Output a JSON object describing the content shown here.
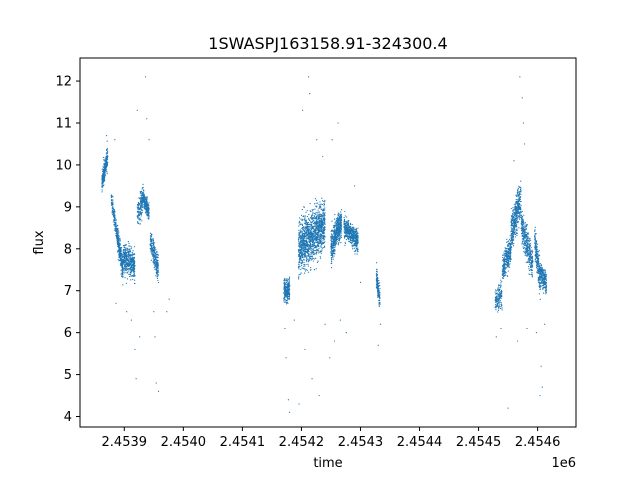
{
  "chart_data": {
    "type": "scatter",
    "title": "1SWASPJ163158.91-324300.4",
    "xlabel": "time",
    "ylabel": "flux",
    "x_offset_label": "1e6",
    "xlim": [
      2453825,
      2454665
    ],
    "ylim": [
      3.75,
      12.55
    ],
    "x_ticks": [
      2453900,
      2454000,
      2454100,
      2454200,
      2454300,
      2454400,
      2454500,
      2454600
    ],
    "x_tick_labels": [
      "2.4539",
      "2.4540",
      "2.4541",
      "2.4542",
      "2.4543",
      "2.4544",
      "2.4545",
      "2.4546"
    ],
    "y_ticks": [
      4,
      5,
      6,
      7,
      8,
      9,
      10,
      11,
      12
    ],
    "y_tick_labels": [
      "4",
      "5",
      "6",
      "7",
      "8",
      "9",
      "10",
      "11",
      "12"
    ],
    "grid": false,
    "legend": "none",
    "marker_color": "#1f77b4",
    "series": [
      {
        "segments": [
          {
            "x_start": 2453862,
            "x_end": 2453872,
            "y_start": 9.6,
            "y_end": 10.2,
            "spread": 0.55,
            "count": 260
          },
          {
            "x_start": 2453878,
            "x_end": 2453888,
            "y_start": 9.2,
            "y_end": 8.3,
            "spread": 0.45,
            "count": 160
          },
          {
            "x_start": 2453888,
            "x_end": 2453898,
            "y_start": 8.3,
            "y_end": 7.5,
            "spread": 0.6,
            "count": 300
          },
          {
            "x_start": 2453898,
            "x_end": 2453918,
            "y_start": 7.8,
            "y_end": 7.6,
            "spread": 0.75,
            "count": 420
          },
          {
            "x_start": 2453922,
            "x_end": 2453932,
            "y_start": 8.8,
            "y_end": 9.2,
            "spread": 0.75,
            "count": 160
          },
          {
            "x_start": 2453932,
            "x_end": 2453942,
            "y_start": 9.2,
            "y_end": 8.9,
            "spread": 0.45,
            "count": 220
          },
          {
            "x_start": 2453944,
            "x_end": 2453958,
            "y_start": 8.2,
            "y_end": 7.5,
            "spread": 0.65,
            "count": 260
          },
          {
            "x_start": 2454170,
            "x_end": 2454180,
            "y_start": 7.0,
            "y_end": 7.0,
            "spread": 0.6,
            "count": 240
          },
          {
            "x_start": 2454195,
            "x_end": 2454240,
            "y_start": 8.0,
            "y_end": 8.6,
            "spread": 1.25,
            "count": 1300
          },
          {
            "x_start": 2454250,
            "x_end": 2454258,
            "y_start": 8.0,
            "y_end": 8.3,
            "spread": 0.9,
            "count": 220
          },
          {
            "x_start": 2454258,
            "x_end": 2454268,
            "y_start": 8.4,
            "y_end": 8.6,
            "spread": 0.6,
            "count": 280
          },
          {
            "x_start": 2454272,
            "x_end": 2454296,
            "y_start": 8.5,
            "y_end": 8.2,
            "spread": 0.55,
            "count": 480
          },
          {
            "x_start": 2454327,
            "x_end": 2454333,
            "y_start": 7.3,
            "y_end": 6.8,
            "spread": 0.6,
            "count": 160
          },
          {
            "x_start": 2454528,
            "x_end": 2454540,
            "y_start": 6.8,
            "y_end": 6.9,
            "spread": 0.6,
            "count": 150
          },
          {
            "x_start": 2454540,
            "x_end": 2454555,
            "y_start": 7.5,
            "y_end": 8.0,
            "spread": 0.7,
            "count": 300
          },
          {
            "x_start": 2454555,
            "x_end": 2454572,
            "y_start": 8.4,
            "y_end": 9.2,
            "spread": 0.9,
            "count": 420
          },
          {
            "x_start": 2454572,
            "x_end": 2454592,
            "y_start": 8.6,
            "y_end": 7.6,
            "spread": 0.8,
            "count": 380
          },
          {
            "x_start": 2454595,
            "x_end": 2454605,
            "y_start": 8.2,
            "y_end": 7.2,
            "spread": 0.8,
            "count": 240
          },
          {
            "x_start": 2454605,
            "x_end": 2454615,
            "y_start": 7.4,
            "y_end": 7.2,
            "spread": 0.55,
            "count": 200
          }
        ],
        "outliers": [
          [
            2453870,
            10.7
          ],
          [
            2453884,
            10.6
          ],
          [
            2453886,
            6.7
          ],
          [
            2453904,
            6.5
          ],
          [
            2453912,
            6.3
          ],
          [
            2453918,
            5.6
          ],
          [
            2453920,
            4.9
          ],
          [
            2453922,
            11.3
          ],
          [
            2453926,
            5.9
          ],
          [
            2453936,
            12.1
          ],
          [
            2453938,
            11.1
          ],
          [
            2453942,
            10.6
          ],
          [
            2453950,
            6.5
          ],
          [
            2453952,
            5.9
          ],
          [
            2453954,
            4.8
          ],
          [
            2453958,
            4.6
          ],
          [
            2453972,
            6.5
          ],
          [
            2453976,
            6.8
          ],
          [
            2454172,
            6.1
          ],
          [
            2454174,
            5.4
          ],
          [
            2454178,
            4.4
          ],
          [
            2454180,
            4.1
          ],
          [
            2454188,
            6.3
          ],
          [
            2454196,
            4.3
          ],
          [
            2454202,
            11.3
          ],
          [
            2454206,
            5.6
          ],
          [
            2454212,
            12.1
          ],
          [
            2454214,
            11.7
          ],
          [
            2454218,
            4.9
          ],
          [
            2454226,
            10.6
          ],
          [
            2454230,
            4.5
          ],
          [
            2454236,
            10.2
          ],
          [
            2454240,
            6.2
          ],
          [
            2454248,
            5.4
          ],
          [
            2454252,
            10.6
          ],
          [
            2454256,
            5.8
          ],
          [
            2454262,
            11.0
          ],
          [
            2454266,
            6.3
          ],
          [
            2454276,
            6.0
          ],
          [
            2454290,
            9.5
          ],
          [
            2454300,
            7.2
          ],
          [
            2454330,
            5.7
          ],
          [
            2454334,
            6.2
          ],
          [
            2454530,
            5.9
          ],
          [
            2454538,
            6.1
          ],
          [
            2454550,
            4.2
          ],
          [
            2454560,
            10.1
          ],
          [
            2454566,
            5.8
          ],
          [
            2454570,
            12.1
          ],
          [
            2454574,
            11.6
          ],
          [
            2454576,
            11.0
          ],
          [
            2454578,
            10.5
          ],
          [
            2454582,
            6.1
          ],
          [
            2454598,
            6.0
          ],
          [
            2454604,
            4.5
          ],
          [
            2454606,
            5.2
          ],
          [
            2454608,
            4.7
          ],
          [
            2454612,
            6.2
          ]
        ]
      }
    ]
  }
}
